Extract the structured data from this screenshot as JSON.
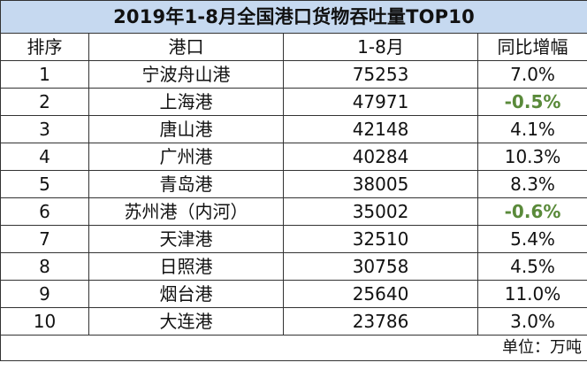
{
  "title": "2019年1-8月全国港口货物吞吐量TOP10",
  "headers": [
    "排序",
    "港口",
    "1-8月",
    "同比增幅"
  ],
  "rows": [
    {
      "rank": "1",
      "port": "宁波舟山港",
      "volume": "75253",
      "growth": "7.0%",
      "negative": false
    },
    {
      "rank": "2",
      "port": "上海港",
      "volume": "47971",
      "growth": "-0.5%",
      "negative": true
    },
    {
      "rank": "3",
      "port": "唐山港",
      "volume": "42148",
      "growth": "4.1%",
      "negative": false
    },
    {
      "rank": "4",
      "port": "广州港",
      "volume": "40284",
      "growth": "10.3%",
      "negative": false
    },
    {
      "rank": "5",
      "port": "青岛港",
      "volume": "38005",
      "growth": "8.3%",
      "negative": false
    },
    {
      "rank": "6",
      "port": "苏州港（内河）",
      "volume": "35002",
      "growth": "-0.6%",
      "negative": true
    },
    {
      "rank": "7",
      "port": "天津港",
      "volume": "32510",
      "growth": "5.4%",
      "negative": false
    },
    {
      "rank": "8",
      "port": "日照港",
      "volume": "30758",
      "growth": "4.5%",
      "negative": false
    },
    {
      "rank": "9",
      "port": "烟台港",
      "volume": "25640",
      "growth": "11.0%",
      "negative": false
    },
    {
      "rank": "10",
      "port": "大连港",
      "volume": "23786",
      "growth": "3.0%",
      "negative": false
    }
  ],
  "unit": "单位：万吨",
  "colors": {
    "header_bg": "#c6d9f0",
    "negative": "#5a8a3a"
  }
}
